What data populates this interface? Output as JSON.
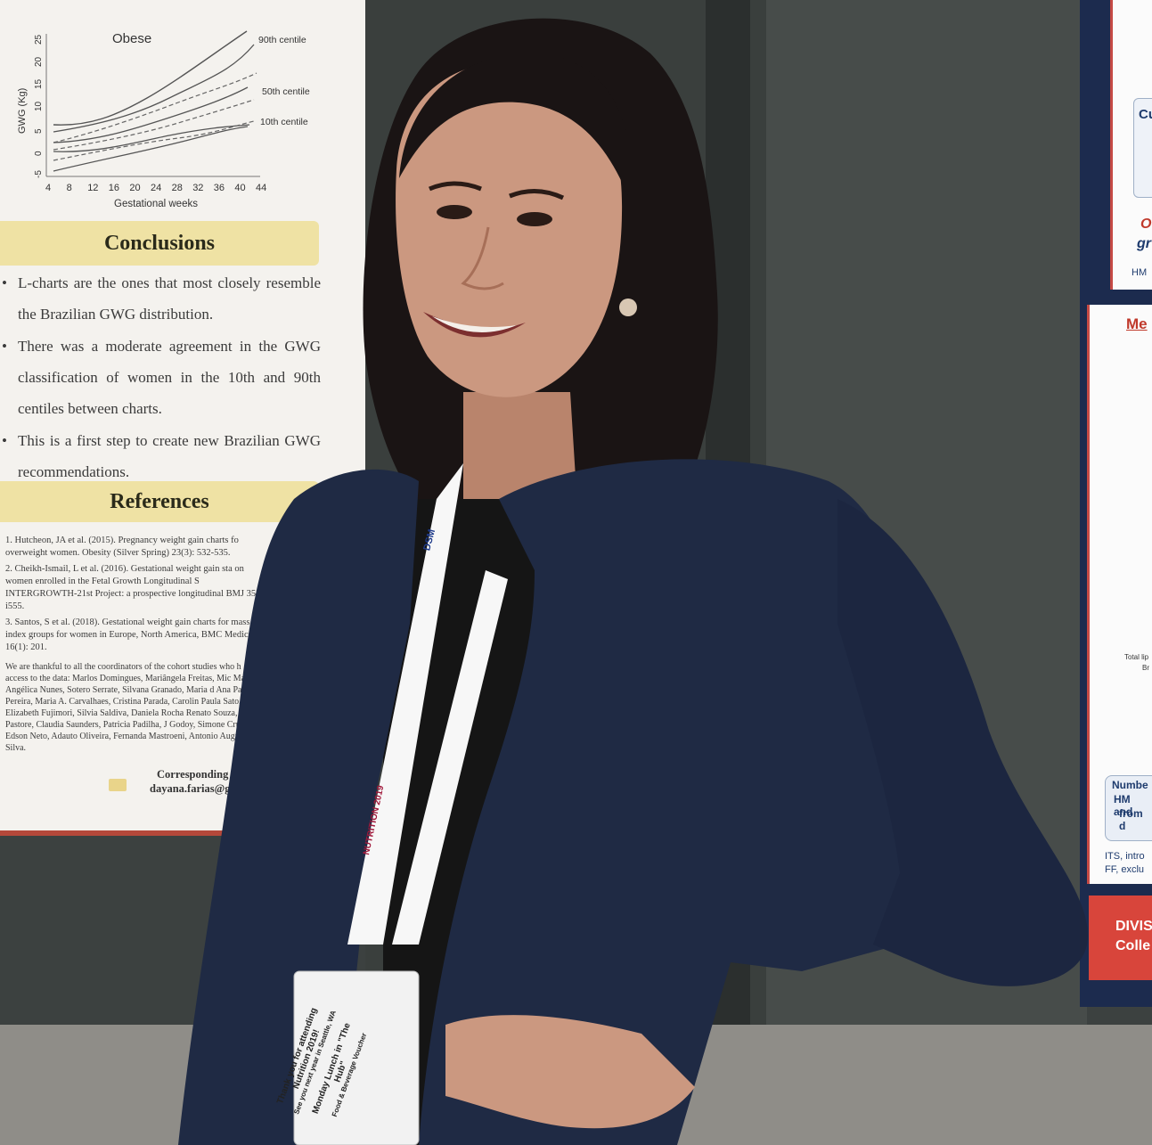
{
  "photo": {
    "subject": "woman-presenting-poster"
  },
  "poster_left": {
    "chart": {
      "title": "Obese",
      "ylabel": "GWG (Kg)",
      "xlabel": "Gestational weeks",
      "y_ticks": [
        "25",
        "20",
        "15",
        "10",
        "5",
        "0",
        "-5"
      ],
      "x_ticks": [
        "4",
        "8",
        "12",
        "16",
        "20",
        "24",
        "28",
        "32",
        "36",
        "40",
        "44"
      ],
      "curve_labels": [
        "90th centile",
        "50th centile",
        "10th centile"
      ]
    },
    "conclusions_title": "Conclusions",
    "conclusions": [
      "L-charts are the ones that most closely resemble the Brazilian GWG distribution.",
      "There was a moderate agreement in the GWG classification of women in the 10th and 90th centiles between charts.",
      "This is a first step to create new Brazilian GWG recommendations."
    ],
    "references_title": "References",
    "references": [
      "1. Hutcheon, JA et al. (2015). Pregnancy weight gain charts fo overweight women. Obesity (Silver Spring) 23(3): 532-535.",
      "2. Cheikh-Ismail, L et al. (2016). Gestational weight gain sta on women enrolled in the Fetal Growth Longitudinal S INTERGROWTH-21st Project: a prospective longitudinal BMJ 352: i555.",
      "3. Santos, S et al. (2018). Gestational weight gain charts for mass index groups for women in Europe, North America, BMC Medicine 16(1): 201."
    ],
    "acknowledgement": "We are thankful to all the coordinators of the cohort studies who h access to the data: Marlos Domingues, Mariângela Freitas, Mic Maria Angélica Nunes, Sotero Serrate, Silvana Granado, Maria d Ana Paula Pereira, Maria A. Carvalhaes, Cristina Parada, Carolin Paula Sato, Elizabeth Fujimori, Silvia Saldiva, Daniela Rocha Renato Souza, Carla Pastore, Claudia Saunders, Patricia Padilha, J Godoy, Simone Cruz, Edson Neto, Adauto Oliveira, Fernanda Mastroeni, Antonio Augusto da Silva.",
    "contact_title": "Corresponding auth",
    "contact_email": "dayana.farias@gma"
  },
  "poster_right": {
    "fragment_1": "Cu",
    "fragment_2": "O",
    "fragment_3": "gr",
    "fragment_4": "HM",
    "fragment_5": "Me",
    "fragment_6": "Numbe",
    "fragment_7": "HM and",
    "fragment_8": "from d",
    "fragment_9": "ITS, intro",
    "fragment_10": "FF, exclu",
    "fragment_11": "DIVIS",
    "fragment_12": "Colle",
    "fragment_13": "Total lip",
    "fragment_14": "Br"
  },
  "lanyard": {
    "brand": "DSM",
    "event": "NUTRITION 2019"
  },
  "badge": {
    "line1": "Thank you for attending",
    "line2": "Nutrition 2019!",
    "line3": "See you next year in Seattle, WA",
    "ticket1": "Monday Lunch in \"The Hub\"",
    "ticket2": "Food & Beverage Voucher"
  },
  "colors": {
    "poster_bg": "#f4f2ee",
    "section_band": "#efe2a4",
    "blazer": "#1f2a44",
    "hair": "#1a1414",
    "skin": "#c99479"
  }
}
